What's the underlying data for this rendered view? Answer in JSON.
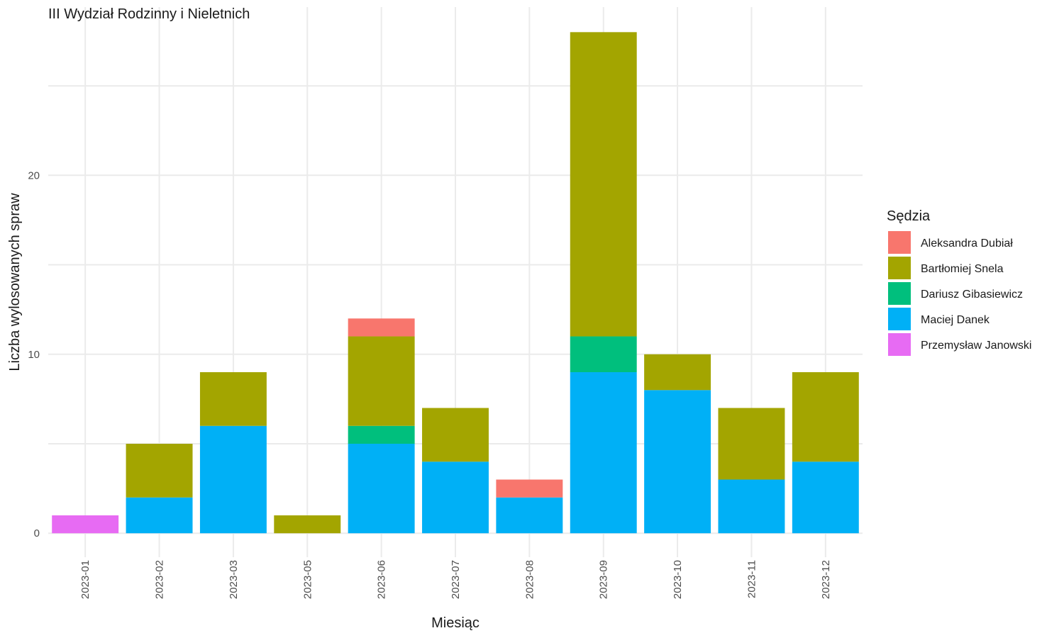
{
  "chart_data": {
    "type": "bar",
    "stacked": true,
    "title": "III Wydział Rodzinny i Nieletnich",
    "xlabel": "Miesiąc",
    "ylabel": "Liczba wylosowanych spraw",
    "ylim": [
      -1.1,
      29.4
    ],
    "yticks": [
      0,
      10,
      20
    ],
    "grid": true,
    "categories": [
      "2023-01",
      "2023-02",
      "2023-03",
      "2023-05",
      "2023-06",
      "2023-07",
      "2023-08",
      "2023-09",
      "2023-10",
      "2023-11",
      "2023-12"
    ],
    "legend": {
      "title": "Sędzia",
      "position": "right"
    },
    "series": [
      {
        "name": "Aleksandra Dubiał",
        "color": "#F8766D",
        "values": [
          0,
          0,
          0,
          0,
          1,
          0,
          1,
          0,
          0,
          0,
          0
        ]
      },
      {
        "name": "Bartłomiej Snela",
        "color": "#A3A500",
        "values": [
          0,
          3,
          3,
          1,
          5,
          3,
          0,
          17,
          2,
          4,
          5
        ]
      },
      {
        "name": "Dariusz Gibasiewicz",
        "color": "#00BF7D",
        "values": [
          0,
          0,
          0,
          0,
          1,
          0,
          0,
          2,
          0,
          0,
          0
        ]
      },
      {
        "name": "Maciej Danek",
        "color": "#00B0F6",
        "values": [
          0,
          2,
          6,
          0,
          5,
          4,
          2,
          9,
          8,
          3,
          4
        ]
      },
      {
        "name": "Przemysław Janowski",
        "color": "#E76BF3",
        "values": [
          1,
          0,
          0,
          0,
          0,
          0,
          0,
          0,
          0,
          0,
          0
        ]
      }
    ]
  }
}
